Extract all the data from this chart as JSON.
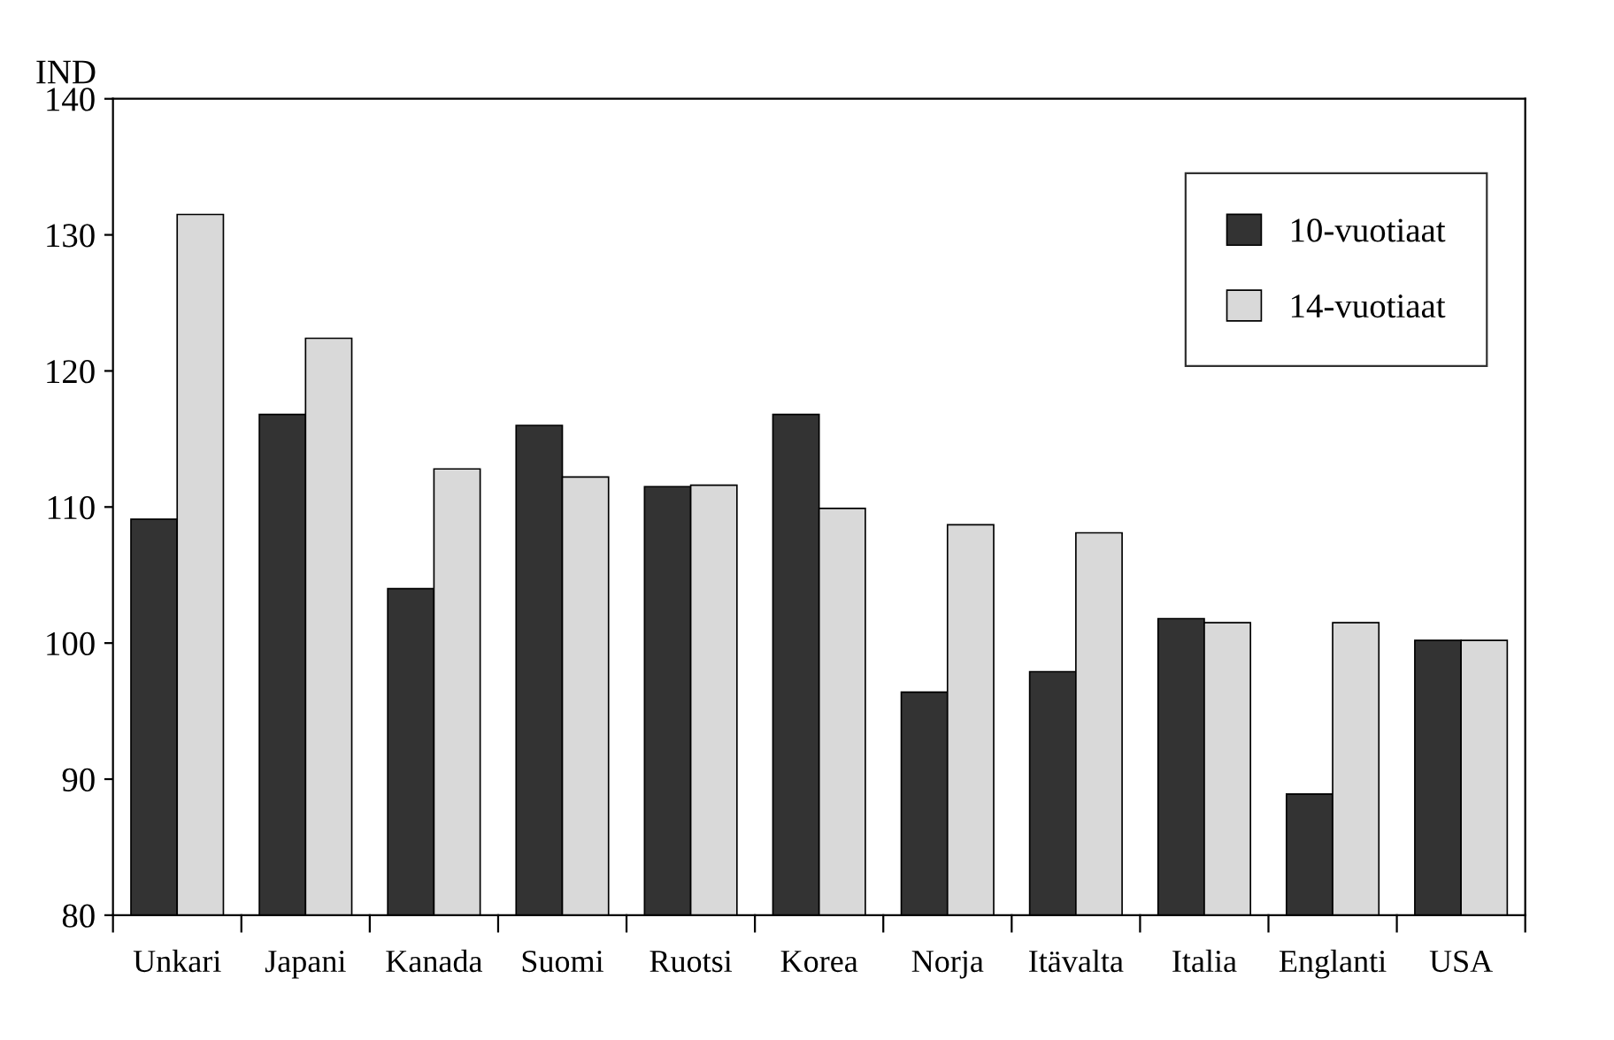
{
  "chart_data": {
    "type": "bar",
    "ylabel": "IND",
    "categories": [
      "Unkari",
      "Japani",
      "Kanada",
      "Suomi",
      "Ruotsi",
      "Korea",
      "Norja",
      "Itävalta",
      "Italia",
      "Englanti",
      "USA"
    ],
    "series": [
      {
        "name": "10-vuotiaat",
        "color": "#333333",
        "values": [
          109.1,
          116.8,
          104,
          116,
          111.5,
          116.8,
          96.4,
          97.9,
          101.8,
          88.9,
          100.2
        ]
      },
      {
        "name": "14-vuotiaat",
        "color": "#d9d9d9",
        "values": [
          131.5,
          122.4,
          112.8,
          112.2,
          111.6,
          109.9,
          108.7,
          108.1,
          101.5,
          101.5,
          100.2
        ]
      }
    ],
    "ylim": [
      80,
      140
    ],
    "yticks": [
      80,
      90,
      100,
      110,
      120,
      130,
      140
    ],
    "grid": false,
    "legend": "top right"
  }
}
